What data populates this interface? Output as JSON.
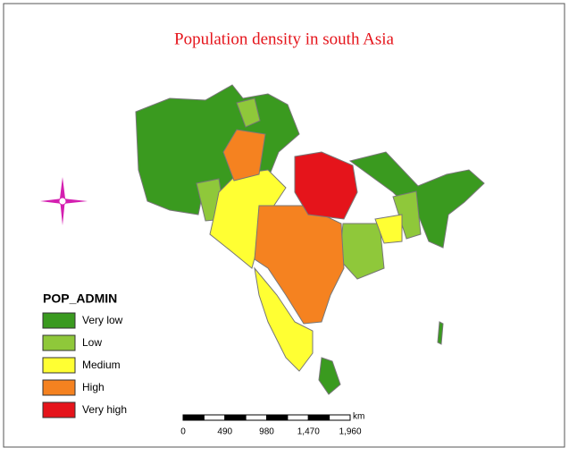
{
  "title": "Population density in south Asia",
  "legend": {
    "title": "POP_ADMIN",
    "items": [
      {
        "label": "Very low",
        "color": "#3a9a1f"
      },
      {
        "label": "Low",
        "color": "#8fc83a"
      },
      {
        "label": "Medium",
        "color": "#ffff33"
      },
      {
        "label": "High",
        "color": "#f58220"
      },
      {
        "label": "Very high",
        "color": "#e5141b"
      }
    ]
  },
  "scale_bar": {
    "labels": [
      "0",
      "490",
      "980",
      "1,470",
      "1,960"
    ],
    "unit": "km"
  }
}
